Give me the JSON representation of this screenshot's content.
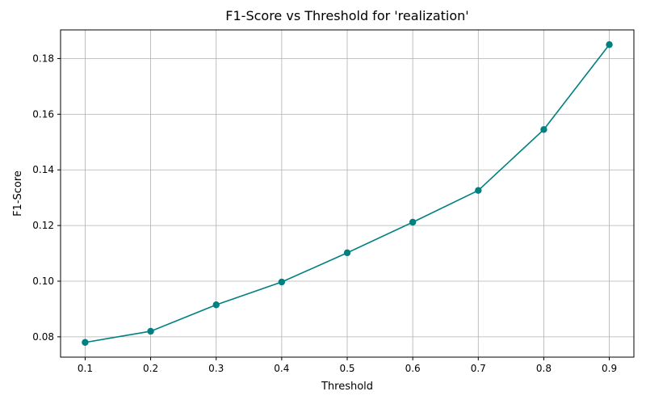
{
  "chart_data": {
    "type": "line",
    "title": "F1-Score vs Threshold for 'realization'",
    "xlabel": "Threshold",
    "ylabel": "F1-Score",
    "x": [
      0.1,
      0.2,
      0.3,
      0.4,
      0.5,
      0.6,
      0.7,
      0.8,
      0.9
    ],
    "series": [
      {
        "name": "F1-Score",
        "values": [
          0.078,
          0.082,
          0.0915,
          0.0997,
          0.1102,
          0.1212,
          0.1326,
          0.1545,
          0.185
        ],
        "color": "#008080",
        "marker": "circle"
      }
    ],
    "xlim": [
      0.0625,
      0.9375
    ],
    "ylim": [
      0.0727,
      0.1903
    ],
    "xticks": [
      "0.1",
      "0.2",
      "0.3",
      "0.4",
      "0.5",
      "0.6",
      "0.7",
      "0.8",
      "0.9"
    ],
    "yticks": [
      "0.08",
      "0.10",
      "0.12",
      "0.14",
      "0.16",
      "0.18"
    ],
    "grid": true
  }
}
